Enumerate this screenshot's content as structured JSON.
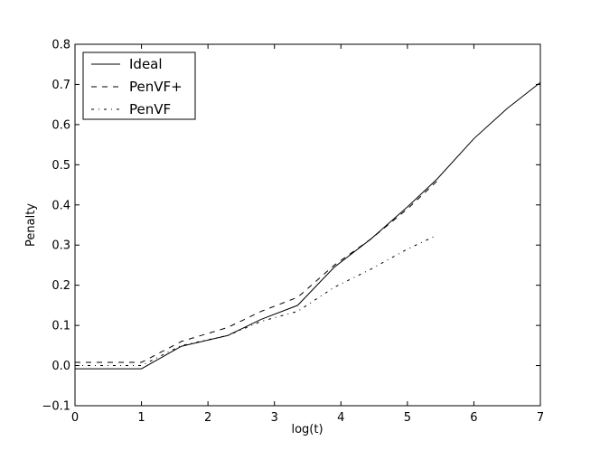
{
  "chart_data": {
    "type": "line",
    "title": "",
    "xlabel": "log(t)",
    "ylabel": "Penalty",
    "xlim": [
      0,
      7
    ],
    "ylim": [
      -0.1,
      0.8
    ],
    "xticks": [
      0,
      1,
      2,
      3,
      4,
      5,
      6,
      7
    ],
    "yticks": [
      -0.1,
      0.0,
      0.1,
      0.2,
      0.3,
      0.4,
      0.5,
      0.6,
      0.7,
      0.8
    ],
    "xtick_labels": [
      "0",
      "1",
      "2",
      "3",
      "4",
      "5",
      "6",
      "7"
    ],
    "ytick_labels": [
      "−0.1",
      "0.0",
      "0.1",
      "0.2",
      "0.3",
      "0.4",
      "0.5",
      "0.6",
      "0.7",
      "0.8"
    ],
    "grid": false,
    "legend_position": "top-left",
    "series": [
      {
        "name": "Ideal",
        "style": "solid",
        "x": [
          0,
          1.0,
          1.6,
          2.3,
          2.8,
          3.35,
          3.9,
          4.45,
          5.0,
          5.45,
          6.0,
          6.5,
          7.0
        ],
        "y": [
          -0.008,
          -0.008,
          0.048,
          0.075,
          0.115,
          0.15,
          0.245,
          0.315,
          0.395,
          0.465,
          0.565,
          0.64,
          0.705
        ]
      },
      {
        "name": "PenVF+",
        "style": "dashed",
        "x": [
          0,
          1.0,
          1.6,
          2.3,
          2.8,
          3.35,
          3.9,
          4.45,
          5.0,
          5.45
        ],
        "y": [
          0.008,
          0.008,
          0.06,
          0.095,
          0.135,
          0.17,
          0.25,
          0.315,
          0.39,
          0.46
        ]
      },
      {
        "name": "PenVF",
        "style": "dashdot",
        "x": [
          0,
          1.0,
          1.6,
          2.3,
          2.8,
          3.35,
          3.9,
          4.45,
          5.0,
          5.45
        ],
        "y": [
          0.0,
          0.0,
          0.05,
          0.075,
          0.11,
          0.135,
          0.195,
          0.24,
          0.29,
          0.325
        ]
      }
    ]
  }
}
